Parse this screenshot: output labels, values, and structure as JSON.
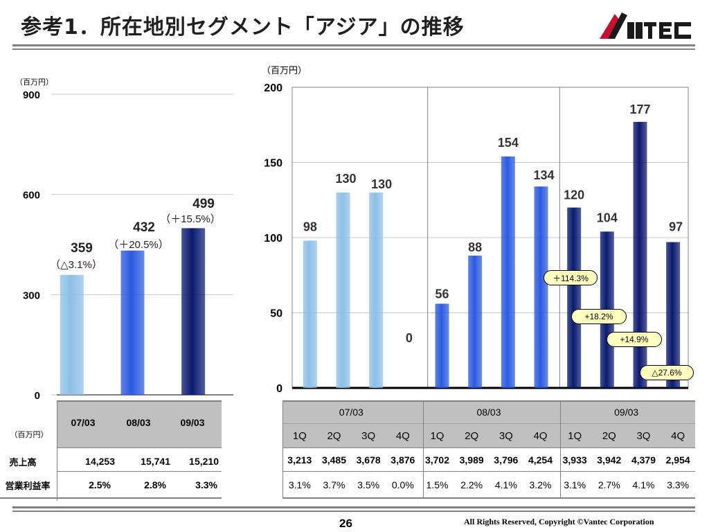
{
  "header": {
    "title": "参考1．所在地別セグメント「アジア」の推移",
    "logo_text": "VANTEC"
  },
  "footer": {
    "page_number": "26",
    "copyright": "All Rights Reserved, Copyright ©Vantec Corporation"
  },
  "colors": {
    "year_0703": "#8ebfe8",
    "year_0803": "#2a5ae0",
    "year_0903": "#0a1a70",
    "header_fill": "#c0c0c0",
    "bubble_fill": "#ffffc0"
  },
  "left_table": {
    "unit": "（百万円）",
    "headers": [
      "07/03",
      "08/03",
      "09/03"
    ],
    "rows": [
      {
        "label": "売上高",
        "values": [
          "14,253",
          "15,741",
          "15,210"
        ]
      },
      {
        "label": "営業利益率",
        "values": [
          "2.5%",
          "2.8%",
          "3.3%"
        ]
      }
    ]
  },
  "right_table": {
    "years": [
      "07/03",
      "08/03",
      "09/03"
    ],
    "quarters": [
      "1Q",
      "2Q",
      "3Q",
      "4Q",
      "1Q",
      "2Q",
      "3Q",
      "4Q",
      "1Q",
      "2Q",
      "3Q",
      "4Q"
    ],
    "sales": [
      "3,213",
      "3,485",
      "3,678",
      "3,876",
      "3,702",
      "3,989",
      "3,796",
      "4,254",
      "3,933",
      "3,942",
      "4,379",
      "2,954"
    ],
    "margin": [
      "3.1%",
      "3.7%",
      "3.5%",
      "0.0%",
      "1.5%",
      "2.2%",
      "4.1%",
      "3.2%",
      "3.1%",
      "2.7%",
      "4.1%",
      "3.3%"
    ]
  },
  "chart_data": [
    {
      "type": "bar",
      "unit": "（百万円）",
      "categories": [
        "07/03",
        "08/03",
        "09/03"
      ],
      "values": [
        359,
        432,
        499
      ],
      "change_labels": [
        "（△3.1%）",
        "（＋20.5%）",
        "（＋15.5%）"
      ],
      "ylim": [
        0,
        900
      ],
      "yticks": [
        0,
        300,
        600,
        900
      ],
      "grid": true
    },
    {
      "type": "bar",
      "unit": "（百万円）",
      "categories": [
        "1Q",
        "2Q",
        "3Q",
        "4Q",
        "1Q",
        "2Q",
        "3Q",
        "4Q",
        "1Q",
        "2Q",
        "3Q",
        "4Q"
      ],
      "groups": [
        "07/03",
        "07/03",
        "07/03",
        "07/03",
        "08/03",
        "08/03",
        "08/03",
        "08/03",
        "09/03",
        "09/03",
        "09/03",
        "09/03"
      ],
      "values": [
        98,
        130,
        130,
        0,
        56,
        88,
        154,
        134,
        120,
        104,
        177,
        97
      ],
      "ylim": [
        0,
        200
      ],
      "yticks": [
        0,
        50,
        100,
        150,
        200
      ],
      "grid": true,
      "annotations": [
        "＋114.3%",
        "+18.2%",
        "+14.9%",
        "△27.6%"
      ]
    }
  ]
}
